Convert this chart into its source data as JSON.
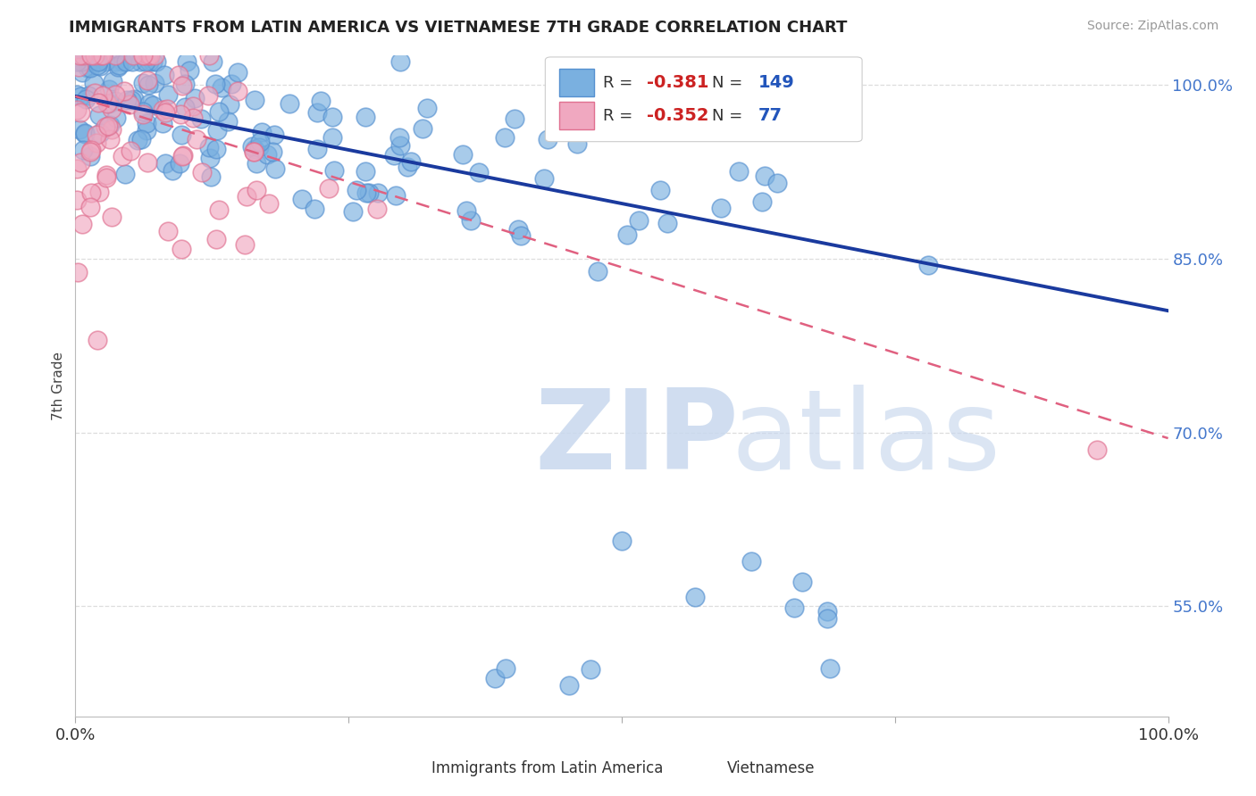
{
  "title": "IMMIGRANTS FROM LATIN AMERICA VS VIETNAMESE 7TH GRADE CORRELATION CHART",
  "source": "Source: ZipAtlas.com",
  "ylabel": "7th Grade",
  "watermark_zip": "ZIP",
  "watermark_atlas": "atlas",
  "legend_entries": [
    {
      "label": "Immigrants from Latin America",
      "R": -0.381,
      "N": 149,
      "color": "#a8c4e8"
    },
    {
      "label": "Vietnamese",
      "R": -0.352,
      "N": 77,
      "color": "#f0a0b8"
    }
  ],
  "xlim": [
    0.0,
    1.0
  ],
  "ylim": [
    0.455,
    1.025
  ],
  "yticks": [
    0.55,
    0.7,
    0.85,
    1.0
  ],
  "ytick_labels": [
    "55.0%",
    "70.0%",
    "85.0%",
    "100.0%"
  ],
  "xtick_labels": [
    "0.0%",
    "100.0%"
  ],
  "blue_line_x": [
    0.0,
    1.0
  ],
  "blue_line_y": [
    0.99,
    0.805
  ],
  "pink_line_x": [
    0.0,
    1.0
  ],
  "pink_line_y": [
    0.99,
    0.695
  ],
  "grid_color": "#dddddd",
  "blue_color": "#7ab0e0",
  "blue_edge_color": "#5590d0",
  "pink_color": "#f0a8c0",
  "pink_edge_color": "#e07090",
  "blue_line_color": "#1a3a9e",
  "pink_line_color": "#e06080"
}
